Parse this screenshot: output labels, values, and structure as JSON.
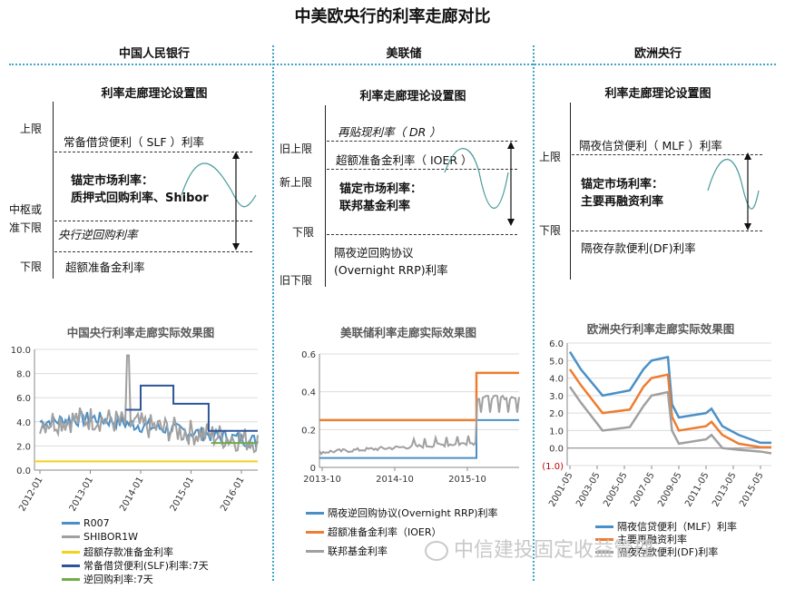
{
  "title": "中美欧央行的利率走廊对比",
  "banks": [
    "中国人民银行",
    "美联储",
    "欧洲央行"
  ],
  "theory_title": "利率走廊理论设置图",
  "china_theory": {
    "side_labels": {
      "upper": "上限",
      "center": "中枢或",
      "lower_alt": "准下限",
      "lower": "下限"
    },
    "slf": "常备借贷便利（ SLF ）利率",
    "anchor_line1": "锚定市场利率：",
    "anchor_line2": "质押式回购利率、Shibor",
    "reverse_repo": "央行逆回购利率",
    "excess_reserve": "超额准备金利率"
  },
  "us_theory": {
    "side_labels": {
      "old_upper": "旧上限",
      "new_upper": "新上限",
      "lower": "下限",
      "old_lower": "旧下限"
    },
    "dr": "再贴现利率（ DR ）",
    "ioer": "超额准备金利率（ IOER ）",
    "anchor_line1": "锚定市场利率：",
    "anchor_line2": "联邦基金利率",
    "rrp_line1": "隔夜逆回购协议",
    "rrp_line2": "(Overnight RRP)利率"
  },
  "eu_theory": {
    "side_labels": {
      "upper": "上限",
      "lower": "下限"
    },
    "mlf": "隔夜信贷便利（ MLF ）利率",
    "anchor_line1": "锚定市场利率：",
    "anchor_line2": "主要再融资利率",
    "df": "隔夜存款便利(DF)利率"
  },
  "watermark": "中信建投固定收益管理",
  "colors": {
    "blue_light": "#4a90c8",
    "gray": "#a0a0a0",
    "yellow": "#f2d21b",
    "navy": "#2f5597",
    "green": "#70ad47",
    "orange": "#ed7d31",
    "dotted": "#3fa6c9"
  },
  "chart_data": [
    {
      "type": "line",
      "title": "中国央行利率走廊实际效果图",
      "x": [
        "2012-01",
        "2013-01",
        "2014-01",
        "2015-01",
        "2016-01"
      ],
      "ylim": [
        0,
        10
      ],
      "yticks": [
        "0.0",
        "2.0",
        "4.0",
        "6.0",
        "8.0",
        "10.0"
      ],
      "series": [
        {
          "name": "R007",
          "values": [
            4.0,
            4.3,
            3.6,
            3.0,
            2.4
          ]
        },
        {
          "name": "SHIBOR1W",
          "values": [
            4.0,
            4.3,
            3.6,
            3.0,
            2.4
          ]
        },
        {
          "name": "超额存款准备金利率",
          "values": [
            0.72,
            0.72,
            0.72,
            0.72,
            0.72
          ]
        },
        {
          "name": "常备借贷便利(SLF)利率:7天",
          "values": [
            null,
            null,
            7.0,
            5.5,
            3.25
          ]
        },
        {
          "name": "逆回购利率:7天",
          "values": [
            null,
            null,
            null,
            null,
            2.25
          ]
        }
      ]
    },
    {
      "type": "line",
      "title": "美联储利率走廊实际效果图",
      "x": [
        "2013-10",
        "2014-10",
        "2015-10"
      ],
      "ylim": [
        0,
        0.6
      ],
      "yticks": [
        "0",
        "0.2",
        "0.4",
        "0.6"
      ],
      "series": [
        {
          "name": "隔夜逆回购协议(Overnight RRP)利率",
          "values": [
            0.05,
            0.05,
            0.25
          ]
        },
        {
          "name": "超额准备金利率（IOER）",
          "values": [
            0.25,
            0.25,
            0.5
          ]
        },
        {
          "name": "联邦基金利率",
          "values": [
            0.08,
            0.1,
            0.38
          ]
        }
      ]
    },
    {
      "type": "line",
      "title": "欧洲央行利率走廊实际效果图",
      "x": [
        "2001-05",
        "2003-05",
        "2005-05",
        "2007-05",
        "2009-05",
        "2011-05",
        "2013-05",
        "2015-05"
      ],
      "ylim": [
        -1.0,
        6.0
      ],
      "yticks": [
        "(1.0)",
        "0.0",
        "1.0",
        "2.0",
        "3.0",
        "4.0",
        "5.0",
        "6.0"
      ],
      "series": [
        {
          "name": "隔夜信贷便利（MLF）利率",
          "values": [
            5.75,
            4.25,
            3.0,
            4.75,
            1.75,
            2.0,
            1.0,
            0.3
          ]
        },
        {
          "name": "主要再融资利率",
          "values": [
            4.75,
            2.75,
            2.0,
            3.75,
            1.0,
            1.25,
            0.5,
            0.05
          ]
        },
        {
          "name": "隔夜存款便利(DF)利率",
          "values": [
            3.75,
            1.75,
            1.0,
            2.75,
            0.25,
            0.5,
            0.0,
            -0.3
          ]
        }
      ]
    }
  ]
}
